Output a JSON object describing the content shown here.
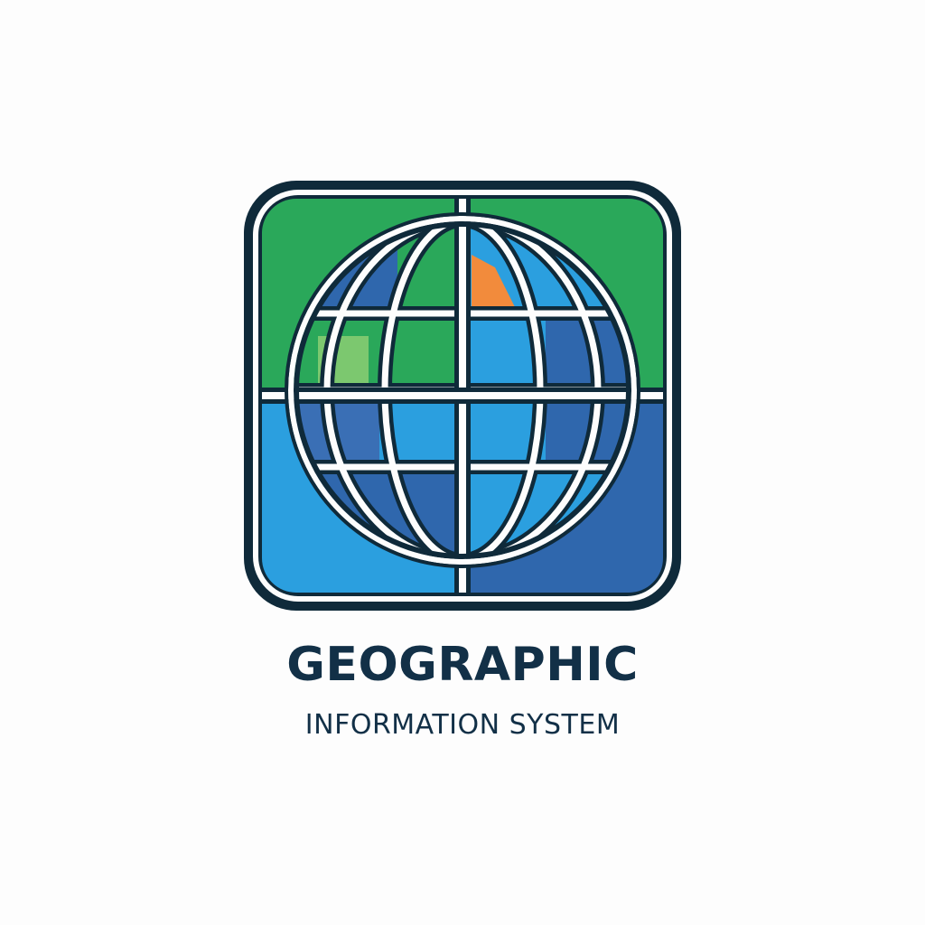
{
  "logo": {
    "title": "GEOGRAPHIC",
    "subtitle": "INFORMATION SYSTEM",
    "icon": "globe-grid-icon"
  },
  "colors": {
    "background": "#fdfdfd",
    "outline": "#0f2a3a",
    "green": "#2aa85a",
    "light_green": "#7cc86f",
    "blue_light": "#2b9fdf",
    "blue_dark": "#2f67ad",
    "blue_mid": "#3a7cc6",
    "orange": "#f28b3c",
    "text": "#123047"
  }
}
